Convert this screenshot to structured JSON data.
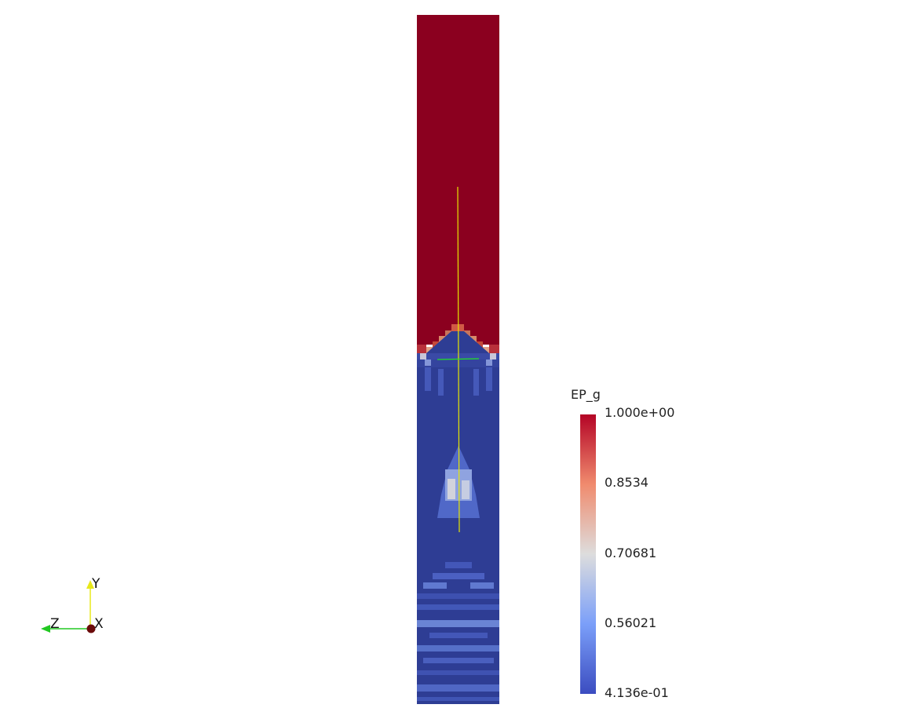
{
  "colorbar": {
    "title": "EP_g",
    "labels": [
      "1.000e+00",
      "0.8534",
      "0.70681",
      "0.56021",
      "4.136e-01"
    ],
    "colors": {
      "max": "#b40426",
      "mid_high": "#f08b6e",
      "mid": "#dddddd",
      "mid_low": "#7b9ff9",
      "min": "#3b4cc0"
    }
  },
  "orientation_axes": {
    "y_label": "Y",
    "z_label": "Z",
    "x_label": "X",
    "y_color": "#e8e81a",
    "z_color": "#22c822",
    "x_color": "#6b0a0a"
  },
  "field": {
    "upper_color": "#8b001f",
    "lower_color": "#2e3d94",
    "probe_line_color": "#e6e600",
    "slice_line_color": "#22e622"
  }
}
